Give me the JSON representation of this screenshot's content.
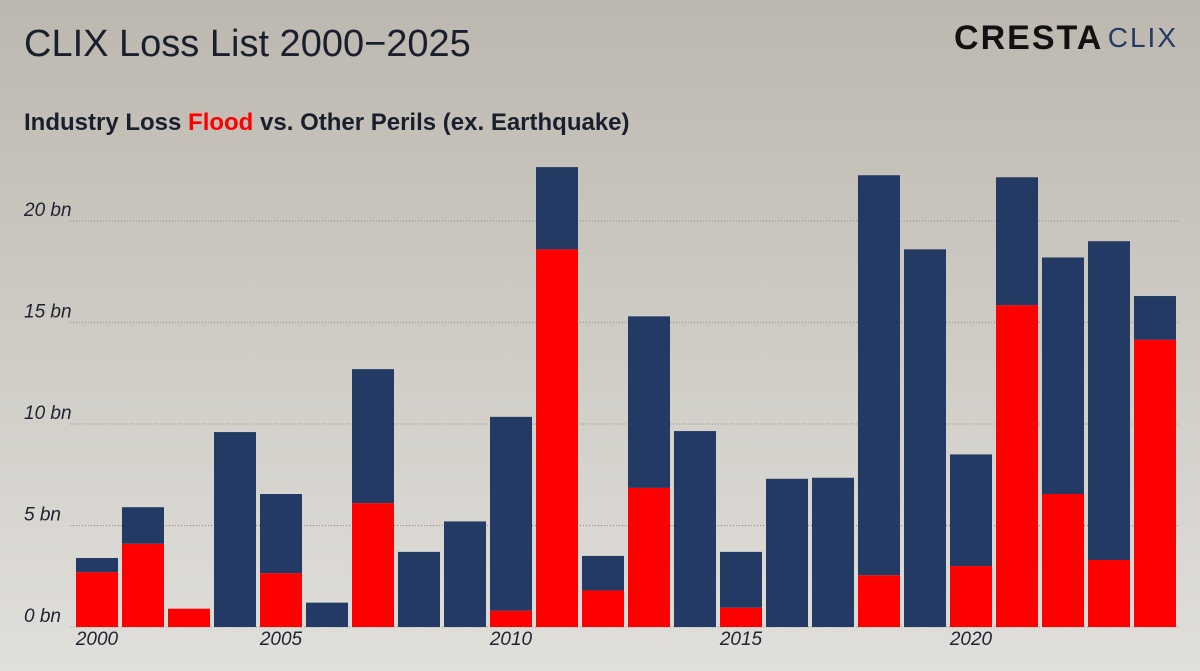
{
  "chart_data": {
    "type": "stacked_bar",
    "title": "CLIX Loss List 2000−2025",
    "subtitle_start": "Industry Loss",
    "subtitle_vs": "vs.",
    "subtitle_end": "(ex. Earthquake)",
    "logo": {
      "brand": "CRESTA",
      "product": "CLIX"
    },
    "categories": [
      "2000",
      null,
      null,
      null,
      "2005",
      null,
      null,
      null,
      null,
      "2010",
      null,
      null,
      null,
      null,
      "2015",
      null,
      null,
      null,
      null,
      "2020",
      null,
      null,
      null,
      null
    ],
    "series": [
      {
        "name": "Flood",
        "color": "#ff0000",
        "values": [
          2.7,
          4.1,
          0.9,
          0,
          2.65,
          0,
          6.1,
          0,
          0,
          0.8,
          18.6,
          1.8,
          6.85,
          0,
          0.95,
          0,
          0,
          2.55,
          0,
          3.0,
          15.85,
          6.55,
          3.3,
          14.15
        ]
      },
      {
        "name": "Other Perils",
        "color": "#233a64",
        "values": [
          0.7,
          1.8,
          0,
          9.6,
          3.9,
          1.2,
          6.6,
          3.7,
          5.2,
          9.55,
          4.05,
          1.7,
          8.45,
          9.65,
          2.75,
          7.3,
          7.35,
          19.7,
          18.6,
          5.5,
          6.3,
          11.65,
          15.7,
          2.15
        ]
      }
    ],
    "ylim": [
      0,
      23
    ],
    "yticks": [
      {
        "value": 0,
        "label": "0 bn"
      },
      {
        "value": 5,
        "label": "5 bn"
      },
      {
        "value": 10,
        "label": "10 bn"
      },
      {
        "value": 15,
        "label": "15 bn"
      },
      {
        "value": 20,
        "label": "20 bn"
      }
    ],
    "grid": true
  }
}
